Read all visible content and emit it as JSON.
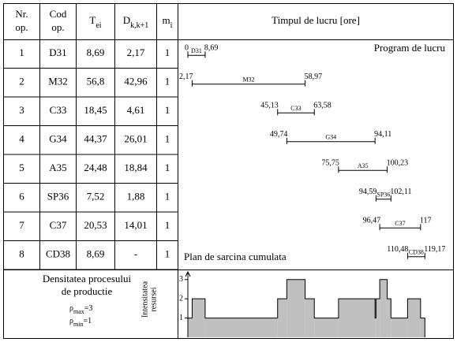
{
  "header": [
    {
      "main": "Nr.",
      "sub2": "op."
    },
    {
      "main": "Cod",
      "sub2": "op."
    },
    {
      "main": "T",
      "sub": "ei"
    },
    {
      "main": "D",
      "sub": "k,k+1"
    },
    {
      "main": "m",
      "sub": "i"
    },
    {
      "main": "Timpul de lucru [ore]"
    }
  ],
  "rows": [
    [
      "1",
      "D31",
      "8,69",
      "2,17",
      "1"
    ],
    [
      "2",
      "M32",
      "56,8",
      "42,96",
      "1"
    ],
    [
      "3",
      "C33",
      "18,45",
      "4,61",
      "1"
    ],
    [
      "4",
      "G34",
      "44,37",
      "26,01",
      "1"
    ],
    [
      "5",
      "A35",
      "24,48",
      "18,84",
      "1"
    ],
    [
      "6",
      "SP36",
      "7,52",
      "1,88",
      "1"
    ],
    [
      "7",
      "C37",
      "20,53",
      "14,01",
      "1"
    ],
    [
      "8",
      "CD38",
      "8,69",
      "-",
      "1"
    ]
  ],
  "gantt": {
    "title": "Program de lucru",
    "bars": [
      {
        "code": "D31",
        "start": 0,
        "end": {
          "value": 8.69,
          "label": "8,69"
        }
      },
      {
        "code": "M32",
        "start": {
          "value": 2.17,
          "label": "2,17"
        },
        "end": {
          "value": 58.97,
          "label": "58,97"
        }
      },
      {
        "code": "C33",
        "start": {
          "value": 45.13,
          "label": "45,13"
        },
        "end": {
          "value": 63.58,
          "label": "63,58"
        }
      },
      {
        "code": "G34",
        "start": {
          "value": 49.74,
          "label": "49,74"
        },
        "end": {
          "value": 94.11,
          "label": "94,11"
        }
      },
      {
        "code": "A35",
        "start": {
          "value": 75.75,
          "label": "75,75"
        },
        "end": {
          "value": 100.23,
          "label": "100,23"
        }
      },
      {
        "code": "SP36",
        "start": {
          "value": 94.59,
          "label": "94,59"
        },
        "end": {
          "value": 102.11,
          "label": "102,11"
        }
      },
      {
        "code": "C37",
        "start": {
          "value": 96.47,
          "label": "96,47"
        },
        "end": 117
      },
      {
        "code": "CD38",
        "start": {
          "value": 110.48,
          "label": "110,48"
        },
        "end": {
          "value": 119.17,
          "label": "119,17"
        }
      }
    ]
  },
  "load_plan": {
    "title": "Plan de sarcina cumulata",
    "y_label": [
      "Intensitatea",
      "resursei"
    ],
    "yticks": [
      1,
      2,
      3
    ],
    "ylim": [
      0,
      3.4
    ],
    "times": [
      0,
      2.17,
      8.69,
      45.13,
      49.74,
      58.97,
      63.58,
      75.75,
      94.11,
      94.59,
      96.47,
      100.23,
      102.11,
      110.48,
      117,
      119.17
    ],
    "levels": [
      1,
      2,
      1,
      2,
      3,
      2,
      1,
      2,
      1,
      2,
      3,
      2,
      1,
      2,
      1
    ]
  },
  "density": {
    "title": [
      "Densitatea procesului",
      "de productie"
    ],
    "rho_max": {
      "symbol": "ρ",
      "sub": "max",
      "text": "=3"
    },
    "rho_min": {
      "symbol": "ρ",
      "sub": "min",
      "text": "=1"
    }
  }
}
